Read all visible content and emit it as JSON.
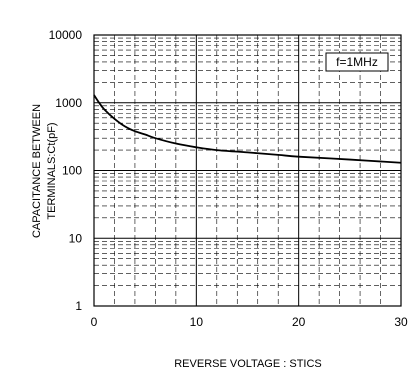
{
  "chart_data": {
    "type": "line",
    "title": "",
    "xlabel": "REVERSE VOLTAGE : STICS",
    "ylabel_line1": "CAPACITANCE BETWEEN",
    "ylabel_line2": "TERMINALS:Ct(pF)",
    "x_scale": "linear",
    "y_scale": "log",
    "xlim": [
      0,
      30
    ],
    "ylim": [
      1,
      10000
    ],
    "x_ticks": [
      {
        "value": 0,
        "label": "0"
      },
      {
        "value": 10,
        "label": "10"
      },
      {
        "value": 20,
        "label": "20"
      },
      {
        "value": 30,
        "label": "30"
      }
    ],
    "y_ticks": [
      {
        "value": 1,
        "label": "1"
      },
      {
        "value": 10,
        "label": "10"
      },
      {
        "value": 100,
        "label": "100"
      },
      {
        "value": 1000,
        "label": "1000"
      },
      {
        "value": 10000,
        "label": "10000"
      }
    ],
    "grid": true,
    "legend": "none",
    "annotation": "f=1MHz",
    "series": [
      {
        "x": [
          0,
          0.5,
          1,
          2,
          3,
          4,
          5,
          6,
          8,
          10,
          12,
          15,
          18,
          20,
          25,
          30
        ],
        "y": [
          1300,
          1000,
          800,
          580,
          450,
          380,
          340,
          300,
          250,
          220,
          200,
          185,
          170,
          160,
          145,
          130
        ]
      }
    ],
    "colors": {
      "line": "#000000",
      "grid": "#000000",
      "axis": "#000000"
    }
  }
}
